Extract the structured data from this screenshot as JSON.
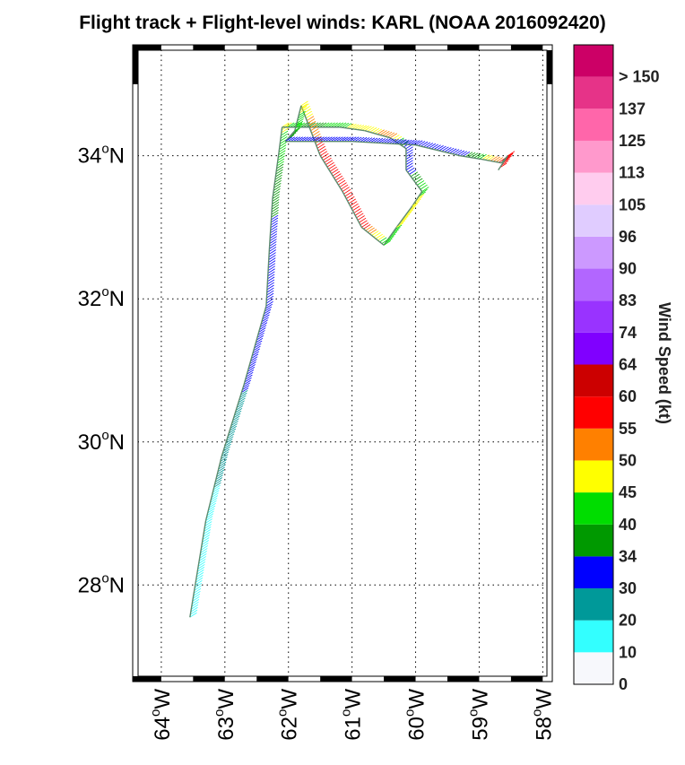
{
  "title": "Flight track + Flight-level winds: KARL (NOAA 2016092420)",
  "colorbar": {
    "label": "Wind Speed (kt)",
    "bins": [
      {
        "label": "0",
        "color": "#f7f8fc"
      },
      {
        "label": "10",
        "color": "#33ffff"
      },
      {
        "label": "20",
        "color": "#009999"
      },
      {
        "label": "30",
        "color": "#0000ff"
      },
      {
        "label": "34",
        "color": "#009900"
      },
      {
        "label": "40",
        "color": "#00dd00"
      },
      {
        "label": "45",
        "color": "#ffff00"
      },
      {
        "label": "50",
        "color": "#ff8000"
      },
      {
        "label": "55",
        "color": "#ff0000"
      },
      {
        "label": "60",
        "color": "#cc0000"
      },
      {
        "label": "64",
        "color": "#8000ff"
      },
      {
        "label": "74",
        "color": "#9933ff"
      },
      {
        "label": "83",
        "color": "#b266ff"
      },
      {
        "label": "90",
        "color": "#cc99ff"
      },
      {
        "label": "96",
        "color": "#e0ccff"
      },
      {
        "label": "105",
        "color": "#ffccee"
      },
      {
        "label": "113",
        "color": "#ff99cc"
      },
      {
        "label": "125",
        "color": "#ff66aa"
      },
      {
        "label": "137",
        "color": "#e63388"
      },
      {
        "label": "> 150",
        "color": "#cc0066"
      }
    ]
  },
  "axes": {
    "lat_ticks": [
      {
        "deg": "28",
        "hemi": "N"
      },
      {
        "deg": "30",
        "hemi": "N"
      },
      {
        "deg": "32",
        "hemi": "N"
      },
      {
        "deg": "34",
        "hemi": "N"
      }
    ],
    "lon_ticks": [
      {
        "deg": "64",
        "hemi": "W"
      },
      {
        "deg": "63",
        "hemi": "W"
      },
      {
        "deg": "62",
        "hemi": "W"
      },
      {
        "deg": "61",
        "hemi": "W"
      },
      {
        "deg": "60",
        "hemi": "W"
      },
      {
        "deg": "59",
        "hemi": "W"
      },
      {
        "deg": "58",
        "hemi": "W"
      }
    ],
    "lat_range": [
      26.65,
      35.55
    ],
    "lon_range": [
      -64.45,
      -57.85
    ],
    "grid": true
  },
  "track": [
    {
      "lon": -63.55,
      "lat": 27.55,
      "wind": 15
    },
    {
      "lon": -63.3,
      "lat": 28.9,
      "wind": 18
    },
    {
      "lon": -63.05,
      "lat": 29.8,
      "wind": 22
    },
    {
      "lon": -62.7,
      "lat": 30.8,
      "wind": 31
    },
    {
      "lon": -62.35,
      "lat": 31.9,
      "wind": 32
    },
    {
      "lon": -62.3,
      "lat": 32.7,
      "wind": 31
    },
    {
      "lon": -62.25,
      "lat": 33.4,
      "wind": 36
    },
    {
      "lon": -62.15,
      "lat": 34.05,
      "wind": 42
    },
    {
      "lon": -62.1,
      "lat": 34.4,
      "wind": 46
    },
    {
      "lon": -61.85,
      "lat": 34.4,
      "wind": 40
    },
    {
      "lon": -61.6,
      "lat": 34.4,
      "wind": 38
    },
    {
      "lon": -61.2,
      "lat": 34.4,
      "wind": 44
    },
    {
      "lon": -60.8,
      "lat": 34.35,
      "wind": 48
    },
    {
      "lon": -60.4,
      "lat": 34.25,
      "wind": 52
    },
    {
      "lon": -60.15,
      "lat": 34.1,
      "wind": 30
    },
    {
      "lon": -60.15,
      "lat": 33.8,
      "wind": 31
    },
    {
      "lon": -59.9,
      "lat": 33.5,
      "wind": 44
    },
    {
      "lon": -60.05,
      "lat": 33.3,
      "wind": 46
    },
    {
      "lon": -60.3,
      "lat": 33.0,
      "wind": 45
    },
    {
      "lon": -60.5,
      "lat": 32.75,
      "wind": 41
    },
    {
      "lon": -60.85,
      "lat": 33.0,
      "wind": 57
    },
    {
      "lon": -61.15,
      "lat": 33.5,
      "wind": 57
    },
    {
      "lon": -61.5,
      "lat": 34.0,
      "wind": 57
    },
    {
      "lon": -61.8,
      "lat": 34.7,
      "wind": 47
    },
    {
      "lon": -61.9,
      "lat": 34.35,
      "wind": 41
    },
    {
      "lon": -62.05,
      "lat": 34.2,
      "wind": 33
    },
    {
      "lon": -61.0,
      "lat": 34.2,
      "wind": 31
    },
    {
      "lon": -60.0,
      "lat": 34.15,
      "wind": 31
    },
    {
      "lon": -59.3,
      "lat": 34.0,
      "wind": 31
    },
    {
      "lon": -58.95,
      "lat": 33.95,
      "wind": 45
    },
    {
      "lon": -58.65,
      "lat": 33.9,
      "wind": 57
    },
    {
      "lon": -58.55,
      "lat": 34.0,
      "wind": 57
    },
    {
      "lon": -58.7,
      "lat": 33.8,
      "wind": 57
    }
  ]
}
